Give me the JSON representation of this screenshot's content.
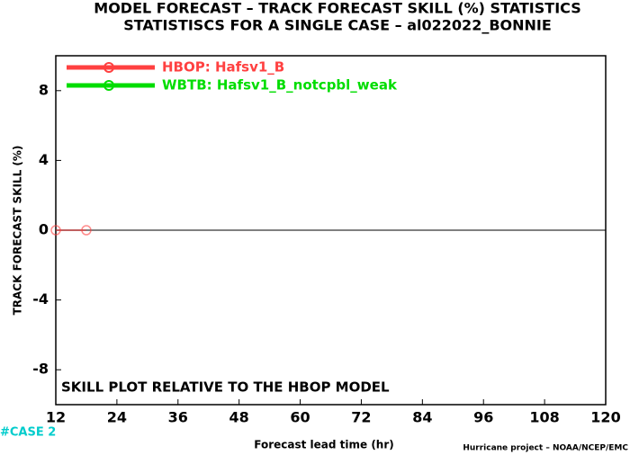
{
  "chart_data": {
    "type": "line",
    "title": "MODEL FORECAST – TRACK FORECAST SKILL (%) STATISTICS",
    "subtitle": "STATISTISCS FOR A SINGLE CASE – al022022_BONNIE",
    "y_label": "TRACK FORECAST SKILL (%)",
    "x_label": "Forecast lead time (hr)",
    "annotation": "SKILL PLOT RELATIVE TO THE HBOP MODEL",
    "case_label": "#CASE 2",
    "credit": "Hurricane project – NOAA/NCEP/EMC",
    "x": [
      12,
      18
    ],
    "series": [
      {
        "name": "HBOP: Hafsv1_B",
        "color": "#ff4040",
        "values": [
          0,
          0
        ]
      },
      {
        "name": "WBTB: Hafsv1_B_notcpbl_weak",
        "color": "#00dd00",
        "values": [
          null,
          null
        ]
      }
    ],
    "xlim": [
      12,
      120
    ],
    "xticks": [
      12,
      24,
      36,
      48,
      60,
      72,
      84,
      96,
      108,
      120
    ],
    "ylim": [
      -10,
      10
    ],
    "yticks": [
      -8,
      -4,
      0,
      4,
      8
    ],
    "legend": "top-left"
  }
}
